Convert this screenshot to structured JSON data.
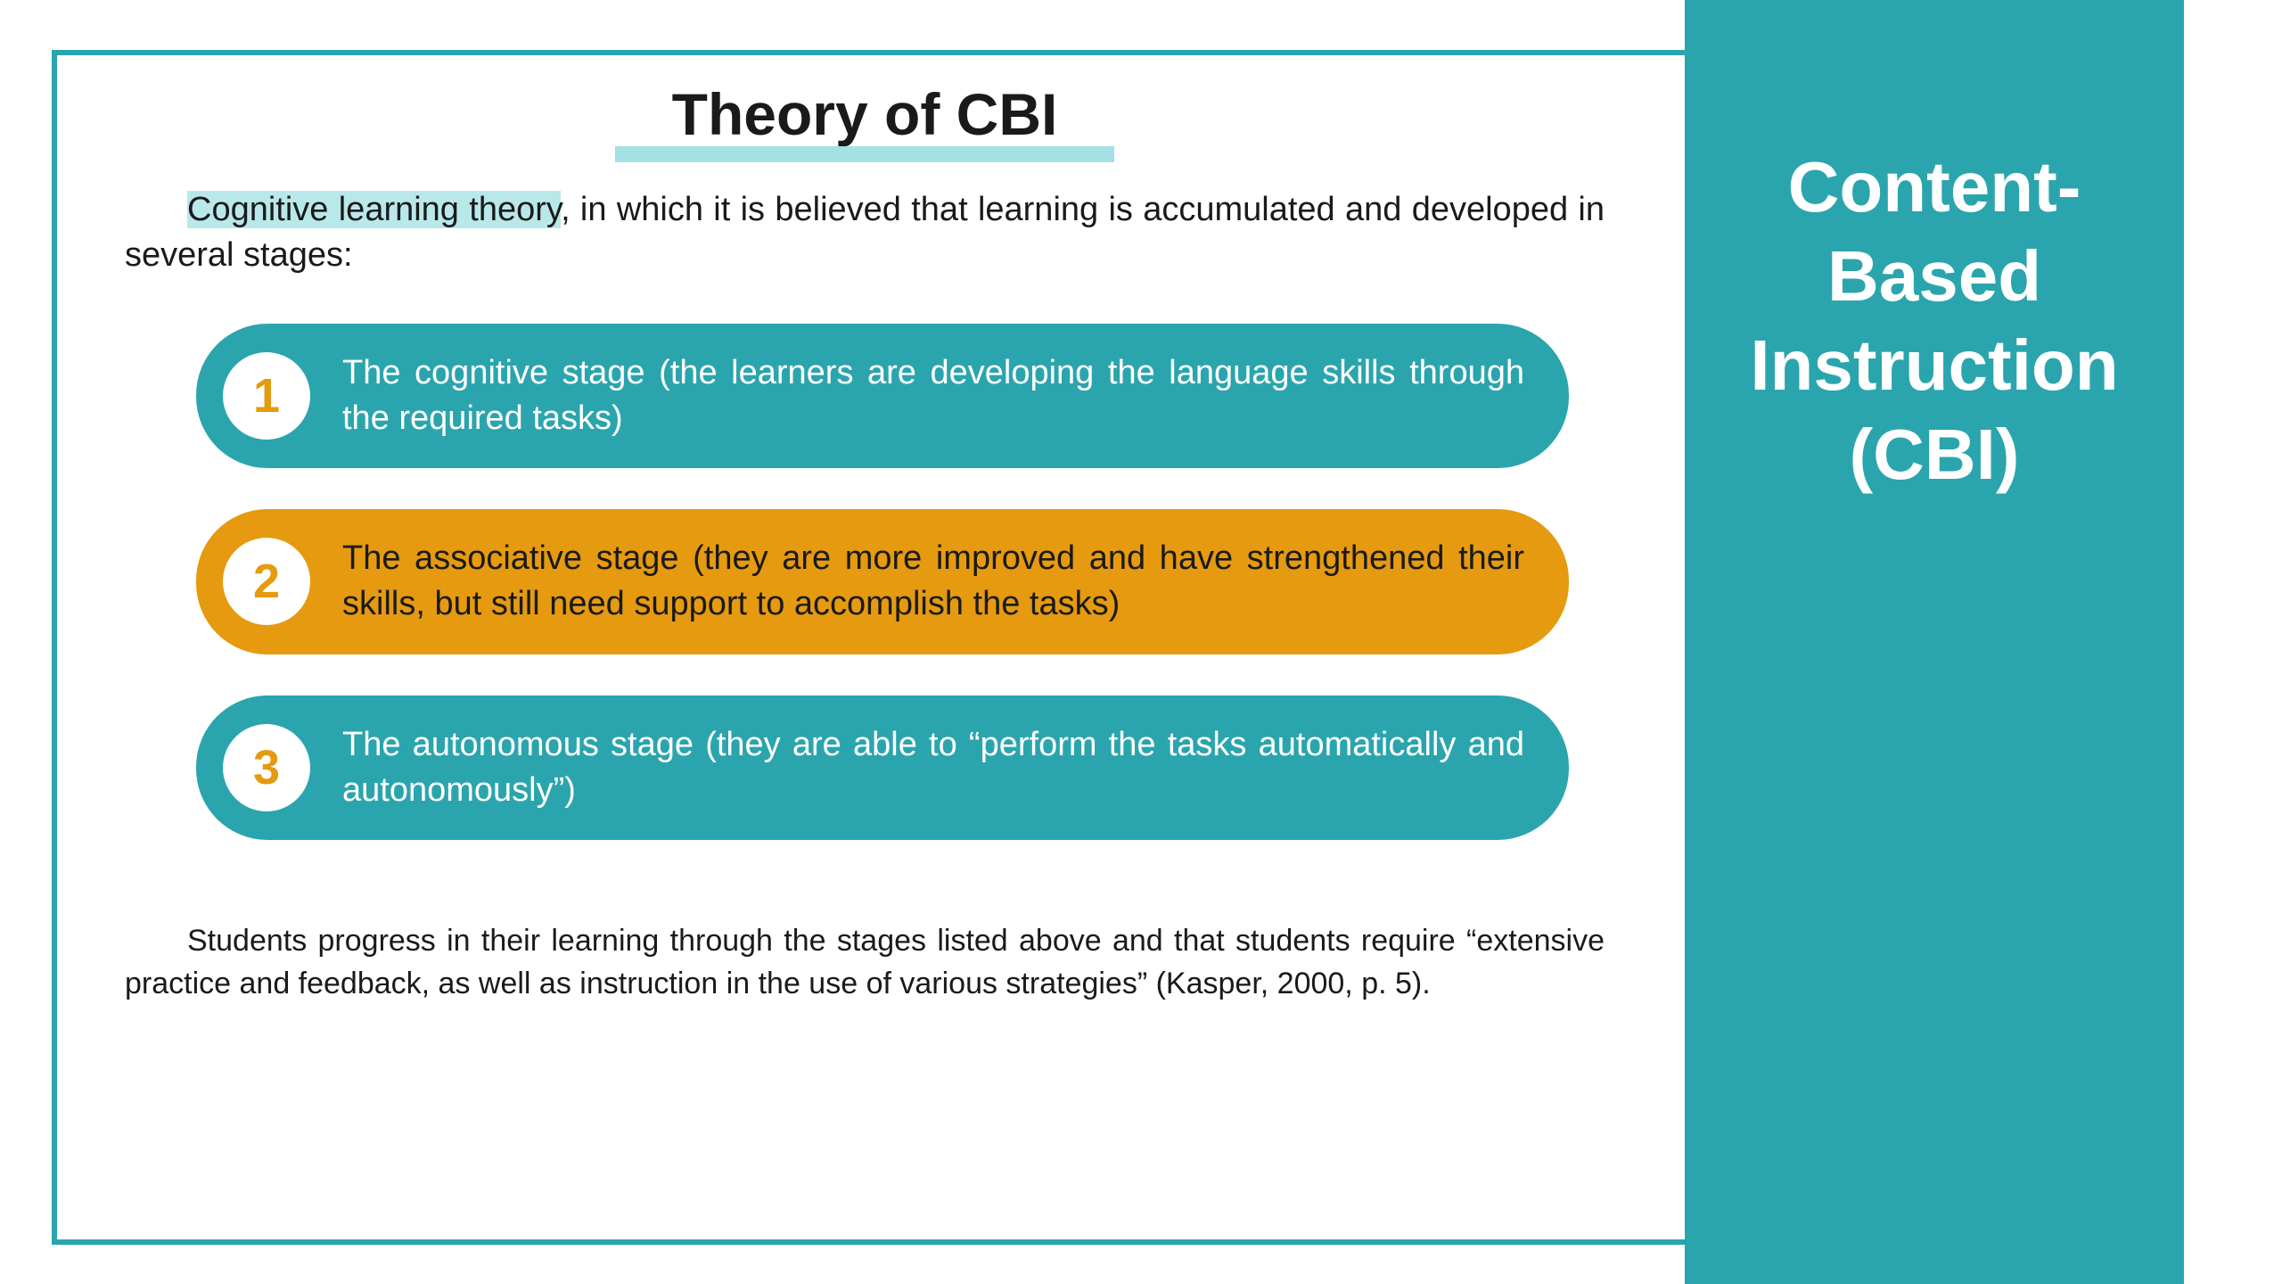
{
  "sidebar": {
    "title": "Content-Based Instruction (CBI)"
  },
  "main": {
    "title": "Theory of CBI",
    "intro_highlight": "Cognitive learning theory",
    "intro_rest": ", in which it is believed that learning is accumulated and developed in several stages:",
    "footnote": "Students progress in their learning through the stages listed above and that students require “extensive practice and feedback, as well as instruction in the use of various strategies” (Kasper, 2000, p. 5).",
    "stages": [
      {
        "num": "1",
        "text": "The cognitive stage (the learners are developing the language skills through the required tasks)",
        "color": "teal"
      },
      {
        "num": "2",
        "text": "The associative stage (they are more improved and have strengthened their skills, but still need support to accomplish the tasks)",
        "color": "orange"
      },
      {
        "num": "3",
        "text": "The autonomous stage (they are able to “perform the tasks automatically and autonomously”)",
        "color": "teal"
      }
    ]
  },
  "colors": {
    "teal": "#2ba5ad",
    "orange": "#e59a0f",
    "highlight": "#b9e8ea",
    "underline": "#a3e1e4",
    "text": "#1a1a1a",
    "white": "#ffffff"
  },
  "typography": {
    "title_fontsize": 66,
    "body_fontsize": 38,
    "sidebar_fontsize": 80,
    "footnote_fontsize": 34,
    "stage_number_fontsize": 54
  }
}
